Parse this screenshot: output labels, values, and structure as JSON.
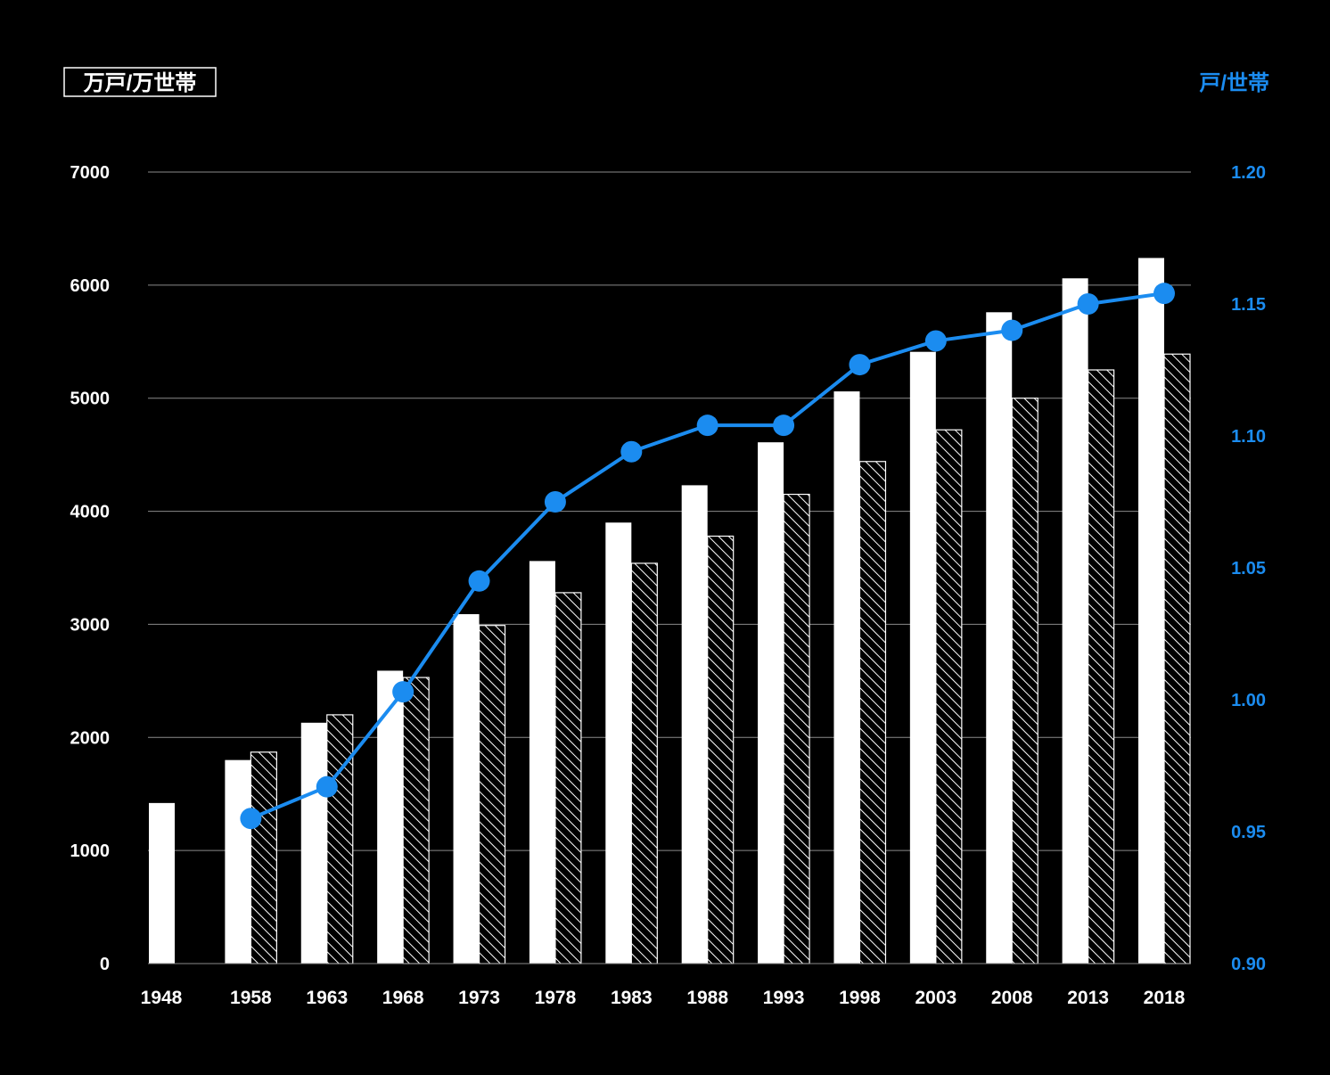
{
  "chart_data": {
    "type": "bar",
    "categories": [
      "1948",
      "1958",
      "1963",
      "1968",
      "1973",
      "1978",
      "1983",
      "1988",
      "1993",
      "1998",
      "2003",
      "2008",
      "2013",
      "2018"
    ],
    "series": [
      {
        "type": "bar",
        "axis": "left",
        "style": "solid-white",
        "values": [
          1420,
          1800,
          2130,
          2590,
          3090,
          3560,
          3900,
          4230,
          4610,
          5060,
          5410,
          5760,
          6060,
          6240
        ]
      },
      {
        "type": "bar",
        "axis": "left",
        "style": "hatched",
        "values": [
          null,
          1870,
          2200,
          2530,
          2990,
          3280,
          3540,
          3780,
          4150,
          4440,
          4720,
          5000,
          5250,
          5390
        ]
      },
      {
        "type": "line",
        "axis": "right",
        "values": [
          null,
          0.955,
          0.967,
          1.003,
          1.045,
          1.075,
          1.094,
          1.104,
          1.104,
          1.127,
          1.136,
          1.14,
          1.15,
          1.154
        ]
      }
    ],
    "y_left": {
      "label": "万戸/万世帯",
      "ylim": [
        0,
        7000
      ],
      "ticks": [
        "0",
        "1000",
        "2000",
        "3000",
        "4000",
        "5000",
        "6000",
        "7000"
      ]
    },
    "y_right": {
      "label": "戸/世帯",
      "ylim": [
        0.9,
        1.2
      ],
      "ticks": [
        "0.90",
        "0.95",
        "1.00",
        "1.05",
        "1.10",
        "1.15",
        "1.20"
      ]
    },
    "grid": true,
    "colors": {
      "background": "#000000",
      "bar": "#ffffff",
      "line": "#1b8cf0",
      "grid": "#8a8a8a"
    }
  }
}
